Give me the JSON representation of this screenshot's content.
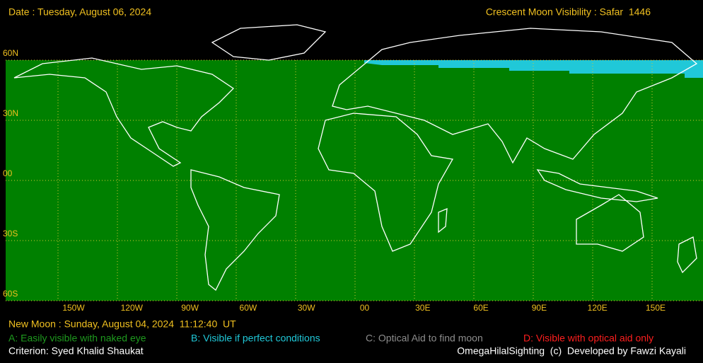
{
  "header": {
    "date": "Date : Tuesday, August 06, 2024",
    "title": "Crescent Moon Visibility : Safar  1446"
  },
  "map": {
    "lat_labels": [
      "60N",
      "30N",
      "00",
      "30S",
      "60S"
    ],
    "lon_labels": [
      "150W",
      "120W",
      "90W",
      "60W",
      "30W",
      "00",
      "30E",
      "60E",
      "90E",
      "120E",
      "150E"
    ]
  },
  "footer": {
    "new_moon": "New Moon : Sunday, August 04, 2024  11:12:40  UT",
    "legend": [
      {
        "text": "A: Easily visible with naked eye",
        "color": "#1e9a1e"
      },
      {
        "text": "B: Visible if perfect conditions",
        "color": "#20c8d8"
      },
      {
        "text": "C: Optical Aid to find moon",
        "color": "#8c8c8c"
      },
      {
        "text": "D: Visible with optical aid only",
        "color": "#ff1e1e"
      }
    ],
    "criterion": "Criterion: Syed Khalid Shaukat",
    "credit": "OmegaHilalSighting  (c)  Developed by Fawzi Kayali"
  }
}
